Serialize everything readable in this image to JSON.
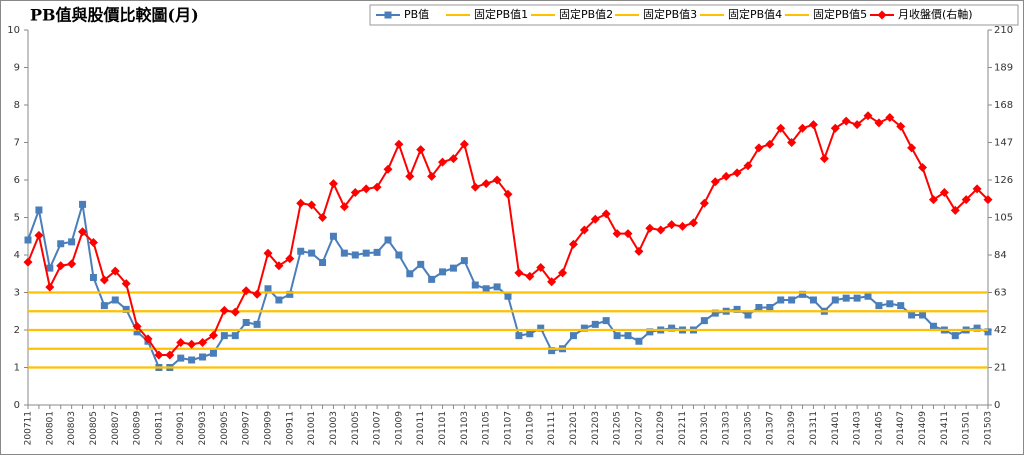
{
  "chart_data": {
    "type": "line",
    "title": "PB值與股價比較圖(月)",
    "categories": [
      "200711",
      null,
      "200801",
      null,
      "200803",
      null,
      "200805",
      null,
      "200807",
      null,
      "200809",
      null,
      "200811",
      null,
      "200901",
      null,
      "200903",
      null,
      "200905",
      null,
      "200907",
      null,
      "200909",
      null,
      "200911",
      null,
      "201001",
      null,
      "201003",
      null,
      "201005",
      null,
      "201007",
      null,
      "201009",
      null,
      "201011",
      null,
      "201101",
      null,
      "201103",
      null,
      "201105",
      null,
      "201107",
      null,
      "201109",
      null,
      "201111",
      null,
      "201201",
      null,
      "201203",
      null,
      "201205",
      null,
      "201207",
      null,
      "201209",
      null,
      "201211",
      null,
      "201301",
      null,
      "201303",
      null,
      "201305",
      null,
      "201307",
      null,
      "201309",
      null,
      "201311",
      null,
      "201401",
      null,
      "201403",
      null,
      "201405",
      null,
      "201407",
      null,
      "201409",
      null,
      "201411",
      null,
      "201501",
      null,
      "201503"
    ],
    "series": [
      {
        "name": "PB值",
        "color": "#4a7ebb",
        "marker": "square",
        "values": [
          4.4,
          5.2,
          3.65,
          4.3,
          4.35,
          5.35,
          3.4,
          2.65,
          2.8,
          2.55,
          1.95,
          1.7,
          1.0,
          1.0,
          1.25,
          1.2,
          1.28,
          1.38,
          1.85,
          1.85,
          2.2,
          2.15,
          3.1,
          2.8,
          2.95,
          4.1,
          4.05,
          3.8,
          4.5,
          4.05,
          4.0,
          4.05,
          4.07,
          4.4,
          4.0,
          3.5,
          3.75,
          3.35,
          3.55,
          3.65,
          3.85,
          3.2,
          3.1,
          3.15,
          2.9,
          1.85,
          1.9,
          2.05,
          1.45,
          1.5,
          1.85,
          2.05,
          2.15,
          2.25,
          1.85,
          1.85,
          1.7,
          1.95,
          2.0,
          2.05,
          2.0,
          2.0,
          2.25,
          2.45,
          2.5,
          2.55,
          2.4,
          2.6,
          2.6,
          2.8,
          2.8,
          2.95,
          2.8,
          2.5,
          2.8,
          2.85,
          2.85,
          2.9,
          2.65,
          2.7,
          2.65,
          2.4,
          2.4,
          2.1,
          2.0,
          1.85,
          2.0,
          2.05,
          1.95
        ]
      },
      {
        "name": "固定PB值1",
        "color": "#ffc000",
        "values": [
          1,
          1,
          1,
          1,
          1,
          1,
          1,
          1,
          1,
          1,
          1,
          1,
          1,
          1,
          1,
          1,
          1,
          1,
          1,
          1,
          1,
          1,
          1,
          1,
          1,
          1,
          1,
          1,
          1,
          1,
          1,
          1,
          1,
          1,
          1,
          1,
          1,
          1,
          1,
          1,
          1,
          1,
          1,
          1,
          1,
          1,
          1,
          1,
          1,
          1,
          1,
          1,
          1,
          1,
          1,
          1,
          1,
          1,
          1,
          1,
          1,
          1,
          1,
          1,
          1,
          1,
          1,
          1,
          1,
          1,
          1,
          1,
          1,
          1,
          1,
          1,
          1,
          1,
          1,
          1,
          1,
          1,
          1,
          1,
          1,
          1,
          1,
          1,
          1
        ]
      },
      {
        "name": "固定PB值2",
        "color": "#ffc000",
        "values": [
          1.5,
          1.5,
          1.5,
          1.5,
          1.5,
          1.5,
          1.5,
          1.5,
          1.5,
          1.5,
          1.5,
          1.5,
          1.5,
          1.5,
          1.5,
          1.5,
          1.5,
          1.5,
          1.5,
          1.5,
          1.5,
          1.5,
          1.5,
          1.5,
          1.5,
          1.5,
          1.5,
          1.5,
          1.5,
          1.5,
          1.5,
          1.5,
          1.5,
          1.5,
          1.5,
          1.5,
          1.5,
          1.5,
          1.5,
          1.5,
          1.5,
          1.5,
          1.5,
          1.5,
          1.5,
          1.5,
          1.5,
          1.5,
          1.5,
          1.5,
          1.5,
          1.5,
          1.5,
          1.5,
          1.5,
          1.5,
          1.5,
          1.5,
          1.5,
          1.5,
          1.5,
          1.5,
          1.5,
          1.5,
          1.5,
          1.5,
          1.5,
          1.5,
          1.5,
          1.5,
          1.5,
          1.5,
          1.5,
          1.5,
          1.5,
          1.5,
          1.5,
          1.5,
          1.5,
          1.5,
          1.5,
          1.5,
          1.5,
          1.5,
          1.5,
          1.5,
          1.5,
          1.5,
          1.5
        ]
      },
      {
        "name": "固定PB值3",
        "color": "#ffc000",
        "values": [
          2,
          2,
          2,
          2,
          2,
          2,
          2,
          2,
          2,
          2,
          2,
          2,
          2,
          2,
          2,
          2,
          2,
          2,
          2,
          2,
          2,
          2,
          2,
          2,
          2,
          2,
          2,
          2,
          2,
          2,
          2,
          2,
          2,
          2,
          2,
          2,
          2,
          2,
          2,
          2,
          2,
          2,
          2,
          2,
          2,
          2,
          2,
          2,
          2,
          2,
          2,
          2,
          2,
          2,
          2,
          2,
          2,
          2,
          2,
          2,
          2,
          2,
          2,
          2,
          2,
          2,
          2,
          2,
          2,
          2,
          2,
          2,
          2,
          2,
          2,
          2,
          2,
          2,
          2,
          2,
          2,
          2,
          2,
          2,
          2,
          2,
          2,
          2,
          2
        ]
      },
      {
        "name": "固定PB值4",
        "color": "#ffc000",
        "values": [
          2.5,
          2.5,
          2.5,
          2.5,
          2.5,
          2.5,
          2.5,
          2.5,
          2.5,
          2.5,
          2.5,
          2.5,
          2.5,
          2.5,
          2.5,
          2.5,
          2.5,
          2.5,
          2.5,
          2.5,
          2.5,
          2.5,
          2.5,
          2.5,
          2.5,
          2.5,
          2.5,
          2.5,
          2.5,
          2.5,
          2.5,
          2.5,
          2.5,
          2.5,
          2.5,
          2.5,
          2.5,
          2.5,
          2.5,
          2.5,
          2.5,
          2.5,
          2.5,
          2.5,
          2.5,
          2.5,
          2.5,
          2.5,
          2.5,
          2.5,
          2.5,
          2.5,
          2.5,
          2.5,
          2.5,
          2.5,
          2.5,
          2.5,
          2.5,
          2.5,
          2.5,
          2.5,
          2.5,
          2.5,
          2.5,
          2.5,
          2.5,
          2.5,
          2.5,
          2.5,
          2.5,
          2.5,
          2.5,
          2.5,
          2.5,
          2.5,
          2.5,
          2.5,
          2.5,
          2.5,
          2.5,
          2.5,
          2.5,
          2.5,
          2.5,
          2.5,
          2.5,
          2.5,
          2.5
        ]
      },
      {
        "name": "固定PB值5",
        "color": "#ffc000",
        "values": [
          3,
          3,
          3,
          3,
          3,
          3,
          3,
          3,
          3,
          3,
          3,
          3,
          3,
          3,
          3,
          3,
          3,
          3,
          3,
          3,
          3,
          3,
          3,
          3,
          3,
          3,
          3,
          3,
          3,
          3,
          3,
          3,
          3,
          3,
          3,
          3,
          3,
          3,
          3,
          3,
          3,
          3,
          3,
          3,
          3,
          3,
          3,
          3,
          3,
          3,
          3,
          3,
          3,
          3,
          3,
          3,
          3,
          3,
          3,
          3,
          3,
          3,
          3,
          3,
          3,
          3,
          3,
          3,
          3,
          3,
          3,
          3,
          3,
          3,
          3,
          3,
          3,
          3,
          3,
          3,
          3,
          3,
          3,
          3,
          3,
          3,
          3,
          3,
          3
        ]
      },
      {
        "name": "月收盤價(右軸)",
        "color": "#ff0000",
        "marker": "diamond",
        "axis": "y2",
        "values": [
          80,
          95,
          66,
          78,
          79,
          97,
          91,
          70,
          75,
          68,
          44,
          37,
          28,
          28,
          35,
          34,
          35,
          39,
          53,
          52,
          64,
          62,
          85,
          78,
          82,
          113,
          112,
          105,
          124,
          111,
          119,
          121,
          122,
          132,
          146,
          128,
          143,
          128,
          136,
          138,
          146,
          122,
          124,
          126,
          118,
          74,
          72,
          77,
          69,
          74,
          90,
          98,
          104,
          107,
          96,
          96,
          86,
          99,
          98,
          101,
          100,
          102,
          113,
          125,
          128,
          130,
          134,
          144,
          146,
          155,
          147,
          155,
          157,
          138,
          155,
          159,
          157,
          162,
          158,
          161,
          156,
          144,
          133,
          115,
          119,
          109,
          115,
          121,
          115
        ]
      }
    ],
    "ylim": [
      0,
      10
    ],
    "yticks": [
      0,
      1,
      2,
      3,
      4,
      5,
      6,
      7,
      8,
      9,
      10
    ],
    "y2lim": [
      0,
      210
    ],
    "y2ticks": [
      0,
      21,
      42,
      63,
      84,
      105,
      126,
      147,
      168,
      189,
      210
    ],
    "grid": false,
    "legend": "top-right"
  }
}
